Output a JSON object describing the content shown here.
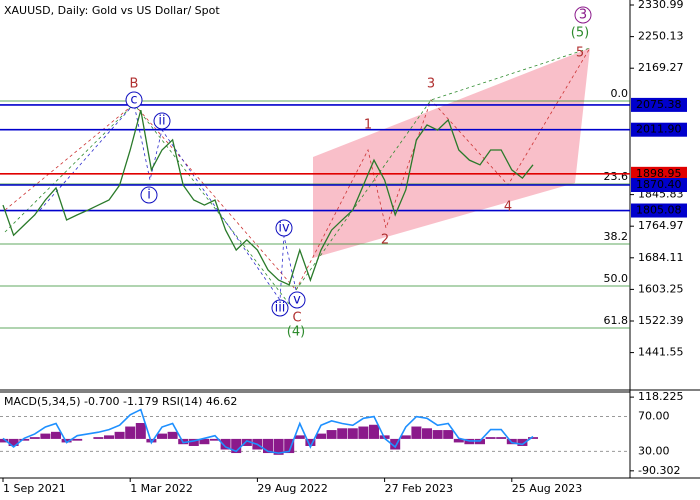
{
  "chart_data": [
    {
      "type": "line",
      "title": "XAUUSD, Daily:  Gold vs US Dollar/ Spot",
      "categories": [
        "1 Sep 2021",
        null,
        null,
        null,
        null,
        null,
        null,
        null,
        null,
        null,
        null,
        null,
        "1 Mar 2022",
        null,
        null,
        null,
        null,
        null,
        null,
        null,
        null,
        null,
        null,
        null,
        "29 Aug 2022",
        null,
        null,
        null,
        null,
        null,
        null,
        null,
        null,
        null,
        null,
        null,
        "27 Feb 2023",
        null,
        null,
        null,
        null,
        null,
        null,
        null,
        null,
        null,
        null,
        null,
        "25 Aug 2023",
        null,
        null
      ],
      "series": [
        {
          "color": "#2a7a2a",
          "values": [
            1819,
            1742,
            1768,
            1794,
            1832,
            1863,
            1781,
            1794,
            1806,
            1819,
            1832,
            1870,
            1960,
            2062,
            1909,
            1960,
            1986,
            1870,
            1832,
            1819,
            1832,
            1755,
            1704,
            1730,
            1704,
            1653,
            1627,
            1615,
            1704,
            1627,
            1704,
            1755,
            1781,
            1806,
            1870,
            1934,
            1883,
            1794,
            1858,
            1986,
            2024,
            2011,
            2037,
            1960,
            1934,
            1922,
            1960,
            1960,
            1909,
            1888,
            1922
          ]
        }
      ],
      "ylim": [
        1345.8,
        2343.8
      ],
      "yticks": [
        2330.99,
        2250.13,
        2169.27,
        1845.83,
        1764.97,
        1684.11,
        1603.25,
        1522.39,
        1441.55
      ],
      "levels": [
        {
          "value": 2075.38,
          "label": "2075.38",
          "color": "#0000cc"
        },
        {
          "value": 2011.9,
          "label": "2011.90",
          "color": "#0000cc"
        },
        {
          "value": 1898.95,
          "label": "1898.95",
          "color": "#e00000"
        },
        {
          "value": 1870.4,
          "label": "1870.40",
          "color": "#0000cc"
        },
        {
          "value": 1805.08,
          "label": "1805.08",
          "color": "#0000cc"
        }
      ],
      "fib_levels": [
        {
          "name": "0.0",
          "price": 2085.3
        },
        {
          "name": "23.6",
          "price": 1872.9
        },
        {
          "name": "38.2",
          "price": 1719.4
        },
        {
          "name": "50.0",
          "price": 1611.9
        },
        {
          "name": "61.8",
          "price": 1504.5
        }
      ],
      "fib_color": "#2e8b2e",
      "annotations": [
        "B",
        "c",
        "ii",
        "i",
        "iv",
        "iii",
        "v",
        "C",
        "(4)",
        "1",
        "2",
        "3",
        "4",
        "5",
        "(5)",
        "3"
      ],
      "grid": false
    },
    {
      "type": "combo",
      "title": "MACD(5,34,5) -0.700 -1.179 RSI(14) 46.62",
      "series": [
        {
          "color": "#8b1a8b",
          "values": [
            -10,
            -20,
            -5,
            5,
            15,
            20,
            -10,
            -5,
            0,
            5,
            10,
            20,
            35,
            45,
            -10,
            15,
            20,
            -15,
            -20,
            -15,
            -5,
            -30,
            -40,
            -20,
            -30,
            -40,
            -45,
            -40,
            10,
            -20,
            15,
            25,
            30,
            30,
            35,
            40,
            10,
            -30,
            10,
            35,
            30,
            25,
            25,
            -10,
            -15,
            -15,
            5,
            5,
            -15,
            -20,
            5
          ]
        },
        {
          "color": "#1e90ff",
          "axis": "y2",
          "values": [
            45,
            35,
            45,
            50,
            58,
            62,
            40,
            48,
            50,
            52,
            55,
            60,
            72,
            78,
            40,
            58,
            62,
            40,
            42,
            45,
            48,
            35,
            30,
            42,
            38,
            30,
            28,
            30,
            62,
            35,
            60,
            65,
            62,
            60,
            68,
            70,
            45,
            35,
            58,
            70,
            68,
            60,
            62,
            45,
            42,
            42,
            55,
            55,
            40,
            38,
            47
          ]
        }
      ],
      "ylim": [
        -110.6,
        132.7
      ],
      "yticks": [
        118.225,
        -90.302
      ],
      "y2lim": [
        -0.6,
        98.2
      ],
      "y2ticks": [
        {
          "value": 70,
          "label": "70.00"
        },
        {
          "value": 30,
          "label": "30.00"
        }
      ]
    }
  ]
}
